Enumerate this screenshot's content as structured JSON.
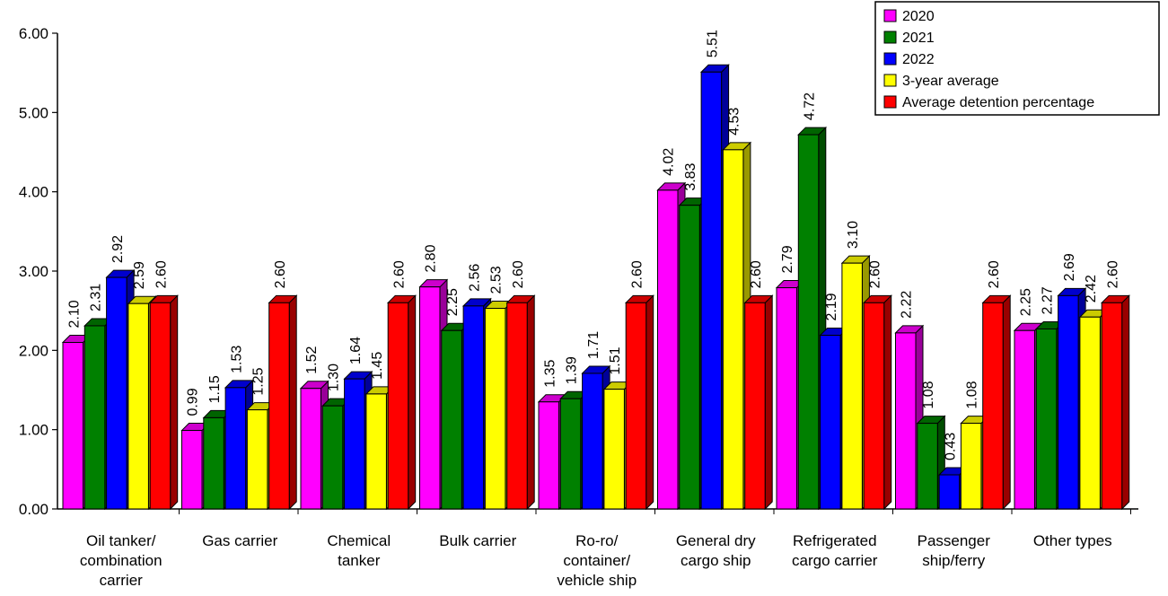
{
  "chart_data": {
    "type": "bar",
    "title": "",
    "xlabel": "",
    "ylabel": "",
    "ylim": [
      0,
      6
    ],
    "yticks": [
      "0.00",
      "1.00",
      "2.00",
      "3.00",
      "4.00",
      "5.00",
      "6.00"
    ],
    "grid": false,
    "legend_position": "top-right",
    "categories": [
      [
        "Oil tanker/",
        "combination",
        "carrier"
      ],
      [
        "Gas carrier"
      ],
      [
        "Chemical",
        "tanker"
      ],
      [
        "Bulk carrier"
      ],
      [
        "Ro-ro/",
        "container/",
        "vehicle ship"
      ],
      [
        "General dry",
        "cargo ship"
      ],
      [
        "Refrigerated",
        "cargo carrier"
      ],
      [
        "Passenger",
        "ship/ferry"
      ],
      [
        "Other types"
      ]
    ],
    "series": [
      {
        "name": "2020",
        "color": "#ff00ff",
        "top_color": "#cc00cc",
        "side_color": "#990099",
        "values": [
          2.1,
          0.99,
          1.52,
          2.8,
          1.35,
          4.02,
          2.79,
          2.22,
          2.25
        ],
        "labels": [
          "2.10",
          "0.99",
          "1.52",
          "2.80",
          "1.35",
          "4.02",
          "2.79",
          "2.22",
          "2.25"
        ]
      },
      {
        "name": "2021",
        "color": "#008000",
        "top_color": "#006400",
        "side_color": "#004d00",
        "values": [
          2.31,
          1.15,
          1.3,
          2.25,
          1.39,
          3.83,
          4.72,
          1.08,
          2.27
        ],
        "labels": [
          "2.31",
          "1.15",
          "1.30",
          "2.25",
          "1.39",
          "3.83",
          "4.72",
          "1.08",
          "2.27"
        ]
      },
      {
        "name": "2022",
        "color": "#0000ff",
        "top_color": "#0000cc",
        "side_color": "#000099",
        "values": [
          2.92,
          1.53,
          1.64,
          2.56,
          1.71,
          5.51,
          2.19,
          0.43,
          2.69
        ],
        "labels": [
          "2.92",
          "1.53",
          "1.64",
          "2.56",
          "1.71",
          "5.51",
          "2.19",
          "0.43",
          "2.69"
        ]
      },
      {
        "name": "3-year average",
        "color": "#ffff00",
        "top_color": "#cccc00",
        "side_color": "#999900",
        "values": [
          2.59,
          1.25,
          1.45,
          2.53,
          1.51,
          4.53,
          3.1,
          1.08,
          2.42
        ],
        "labels": [
          "2.59",
          "1.25",
          "1.45",
          "2.53",
          "1.51",
          "4.53",
          "3.10",
          "1.08",
          "2.42"
        ]
      },
      {
        "name": "Average detention percentage",
        "color": "#ff0000",
        "top_color": "#cc0000",
        "side_color": "#990000",
        "values": [
          2.6,
          2.6,
          2.6,
          2.6,
          2.6,
          2.6,
          2.6,
          2.6,
          2.6
        ],
        "labels": [
          "2.60",
          "2.60",
          "2.60",
          "2.60",
          "2.60",
          "2.60",
          "2.60",
          "2.60",
          "2.60"
        ]
      }
    ]
  }
}
